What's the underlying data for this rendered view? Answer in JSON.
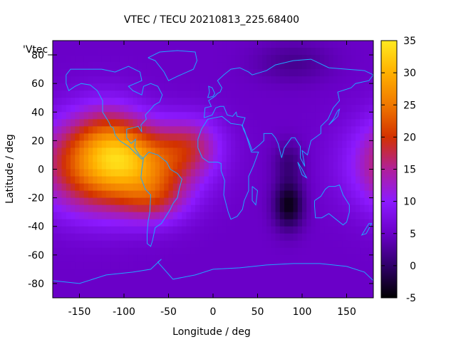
{
  "chart_data": {
    "type": "heatmap",
    "title": "VTEC / TECU 20210813_225.68400",
    "xlabel": "Longitude / deg",
    "ylabel": "Latitude / deg",
    "corner_label": "'Vtec_",
    "xlim": [
      -180,
      180
    ],
    "ylim": [
      -90,
      90
    ],
    "xticks": [
      -150,
      -100,
      -50,
      0,
      50,
      100,
      150
    ],
    "yticks": [
      -80,
      -60,
      -40,
      -20,
      0,
      20,
      40,
      60,
      80
    ],
    "colorbar": {
      "range": [
        -5,
        35
      ],
      "ticks": [
        -5,
        0,
        5,
        10,
        15,
        20,
        25,
        30,
        35
      ],
      "palette": [
        "#000000",
        "#30006a",
        "#6a00c8",
        "#8c1aff",
        "#b0209a",
        "#d33200",
        "#f07800",
        "#ffb000",
        "#ffea20"
      ]
    },
    "grid": false,
    "legend": "none",
    "features": [
      {
        "lon": -150,
        "lat": 5,
        "sx": 40,
        "sy": 22,
        "amp": 12
      },
      {
        "lon": -118,
        "lat": 18,
        "sx": 30,
        "sy": 20,
        "amp": 10
      },
      {
        "lon": -95,
        "lat": 8,
        "sx": 28,
        "sy": 18,
        "amp": 9
      },
      {
        "lon": -55,
        "lat": 2,
        "sx": 35,
        "sy": 18,
        "amp": 10
      },
      {
        "lon": -25,
        "lat": 18,
        "sx": 25,
        "sy": 14,
        "amp": 8
      },
      {
        "lon": -65,
        "lat": -22,
        "sx": 25,
        "sy": 12,
        "amp": 7
      },
      {
        "lon": -115,
        "lat": -15,
        "sx": 40,
        "sy": 18,
        "amp": 6
      },
      {
        "lon": 85,
        "lat": -25,
        "sx": 12,
        "sy": 12,
        "amp": -9
      },
      {
        "lon": 85,
        "lat": 5,
        "sx": 12,
        "sy": 10,
        "amp": -4
      },
      {
        "lon": 90,
        "lat": 75,
        "sx": 30,
        "sy": 10,
        "amp": -3
      }
    ],
    "coastlines": [
      [
        [
          -165,
          66
        ],
        [
          -160,
          70
        ],
        [
          -140,
          70
        ],
        [
          -125,
          70
        ],
        [
          -110,
          68
        ],
        [
          -95,
          72
        ],
        [
          -82,
          68
        ],
        [
          -80,
          62
        ],
        [
          -95,
          58
        ],
        [
          -90,
          55
        ],
        [
          -80,
          52
        ],
        [
          -78,
          58
        ],
        [
          -70,
          60
        ],
        [
          -62,
          58
        ],
        [
          -57,
          52
        ],
        [
          -60,
          47
        ],
        [
          -66,
          45
        ],
        [
          -70,
          42
        ],
        [
          -76,
          38
        ],
        [
          -75,
          35
        ],
        [
          -81,
          31
        ],
        [
          -80,
          26
        ],
        [
          -82,
          28
        ],
        [
          -84,
          30
        ],
        [
          -90,
          29
        ],
        [
          -97,
          28
        ],
        [
          -97,
          22
        ],
        [
          -92,
          18
        ],
        [
          -87,
          21
        ],
        [
          -88,
          15
        ],
        [
          -83,
          10
        ],
        [
          -79,
          8
        ],
        [
          -80,
          7
        ],
        [
          -85,
          10
        ],
        [
          -90,
          13
        ],
        [
          -95,
          16
        ],
        [
          -105,
          20
        ],
        [
          -110,
          24
        ],
        [
          -112,
          29
        ],
        [
          -115,
          30
        ],
        [
          -117,
          33
        ],
        [
          -124,
          40
        ],
        [
          -124,
          48
        ],
        [
          -130,
          55
        ],
        [
          -138,
          59
        ],
        [
          -148,
          60
        ],
        [
          -155,
          58
        ],
        [
          -162,
          55
        ],
        [
          -165,
          60
        ],
        [
          -165,
          66
        ]
      ],
      [
        [
          -78,
          8
        ],
        [
          -72,
          12
        ],
        [
          -62,
          10
        ],
        [
          -52,
          5
        ],
        [
          -48,
          0
        ],
        [
          -40,
          -3
        ],
        [
          -35,
          -7
        ],
        [
          -38,
          -14
        ],
        [
          -40,
          -20
        ],
        [
          -45,
          -24
        ],
        [
          -48,
          -28
        ],
        [
          -53,
          -33
        ],
        [
          -58,
          -38
        ],
        [
          -65,
          -41
        ],
        [
          -68,
          -50
        ],
        [
          -70,
          -54
        ],
        [
          -74,
          -52
        ],
        [
          -74,
          -45
        ],
        [
          -73,
          -37
        ],
        [
          -71,
          -30
        ],
        [
          -70,
          -18
        ],
        [
          -76,
          -14
        ],
        [
          -81,
          -6
        ],
        [
          -80,
          0
        ],
        [
          -78,
          8
        ]
      ],
      [
        [
          -17,
          15
        ],
        [
          -17,
          21
        ],
        [
          -13,
          28
        ],
        [
          -6,
          35
        ],
        [
          10,
          37
        ],
        [
          20,
          32
        ],
        [
          32,
          31
        ],
        [
          35,
          28
        ],
        [
          43,
          12
        ],
        [
          51,
          12
        ],
        [
          45,
          2
        ],
        [
          40,
          -5
        ],
        [
          40,
          -15
        ],
        [
          35,
          -22
        ],
        [
          33,
          -28
        ],
        [
          27,
          -33
        ],
        [
          20,
          -35
        ],
        [
          17,
          -30
        ],
        [
          12,
          -18
        ],
        [
          13,
          -8
        ],
        [
          9,
          -1
        ],
        [
          9,
          4
        ],
        [
          5,
          5
        ],
        [
          -5,
          5
        ],
        [
          -12,
          8
        ],
        [
          -17,
          15
        ]
      ],
      [
        [
          -10,
          36
        ],
        [
          -9,
          43
        ],
        [
          -2,
          44
        ],
        [
          -5,
          48
        ],
        [
          2,
          51
        ],
        [
          5,
          53
        ],
        [
          8,
          54
        ],
        [
          10,
          57
        ],
        [
          5,
          62
        ],
        [
          12,
          66
        ],
        [
          20,
          70
        ],
        [
          30,
          71
        ],
        [
          40,
          68
        ],
        [
          44,
          66
        ],
        [
          60,
          69
        ],
        [
          70,
          73
        ],
        [
          90,
          76
        ],
        [
          110,
          77
        ],
        [
          130,
          71
        ],
        [
          150,
          70
        ],
        [
          170,
          69
        ],
        [
          180,
          66
        ],
        [
          175,
          62
        ],
        [
          160,
          60
        ],
        [
          155,
          57
        ],
        [
          140,
          54
        ],
        [
          142,
          48
        ],
        [
          135,
          43
        ],
        [
          129,
          35
        ],
        [
          121,
          30
        ],
        [
          121,
          25
        ],
        [
          110,
          20
        ],
        [
          106,
          10
        ],
        [
          100,
          13
        ],
        [
          103,
          2
        ],
        [
          98,
          8
        ],
        [
          98,
          16
        ],
        [
          92,
          22
        ],
        [
          88,
          22
        ],
        [
          80,
          15
        ],
        [
          77,
          8
        ],
        [
          73,
          18
        ],
        [
          70,
          22
        ],
        [
          66,
          25
        ],
        [
          57,
          25
        ],
        [
          57,
          20
        ],
        [
          52,
          17
        ],
        [
          44,
          13
        ],
        [
          40,
          20
        ],
        [
          34,
          28
        ],
        [
          33,
          31
        ],
        [
          36,
          36
        ],
        [
          27,
          37
        ],
        [
          26,
          40
        ],
        [
          22,
          37
        ],
        [
          16,
          38
        ],
        [
          12,
          44
        ],
        [
          8,
          44
        ],
        [
          3,
          43
        ],
        [
          -1,
          38
        ],
        [
          -10,
          36
        ]
      ],
      [
        [
          114,
          -22
        ],
        [
          114,
          -26
        ],
        [
          115,
          -34
        ],
        [
          122,
          -34
        ],
        [
          130,
          -31
        ],
        [
          138,
          -35
        ],
        [
          146,
          -39
        ],
        [
          150,
          -37
        ],
        [
          153,
          -30
        ],
        [
          153,
          -25
        ],
        [
          146,
          -18
        ],
        [
          142,
          -11
        ],
        [
          137,
          -12
        ],
        [
          130,
          -12
        ],
        [
          126,
          -14
        ],
        [
          121,
          -19
        ],
        [
          114,
          -22
        ]
      ],
      [
        [
          -180,
          -78
        ],
        [
          -150,
          -80
        ],
        [
          -120,
          -74
        ],
        [
          -90,
          -72
        ],
        [
          -70,
          -70
        ],
        [
          -58,
          -63
        ],
        [
          -62,
          -65
        ],
        [
          -45,
          -77
        ],
        [
          -20,
          -74
        ],
        [
          0,
          -70
        ],
        [
          30,
          -69
        ],
        [
          60,
          -67
        ],
        [
          90,
          -66
        ],
        [
          120,
          -66
        ],
        [
          150,
          -68
        ],
        [
          170,
          -72
        ],
        [
          180,
          -78
        ]
      ],
      [
        [
          -73,
          78
        ],
        [
          -60,
          82
        ],
        [
          -40,
          83
        ],
        [
          -20,
          82
        ],
        [
          -18,
          76
        ],
        [
          -22,
          70
        ],
        [
          -40,
          65
        ],
        [
          -50,
          62
        ],
        [
          -55,
          68
        ],
        [
          -65,
          76
        ],
        [
          -73,
          78
        ]
      ],
      [
        [
          44,
          -12
        ],
        [
          50,
          -15
        ],
        [
          48,
          -25
        ],
        [
          44,
          -22
        ],
        [
          44,
          -12
        ]
      ],
      [
        [
          -6,
          50
        ],
        [
          0,
          51
        ],
        [
          2,
          53
        ],
        [
          -1,
          57
        ],
        [
          -5,
          58
        ],
        [
          -4,
          54
        ],
        [
          -6,
          50
        ]
      ],
      [
        [
          130,
          31
        ],
        [
          135,
          34
        ],
        [
          140,
          37
        ],
        [
          142,
          42
        ],
        [
          140,
          41
        ],
        [
          135,
          35
        ],
        [
          130,
          31
        ]
      ],
      [
        [
          95,
          5
        ],
        [
          100,
          0
        ],
        [
          105,
          -6
        ],
        [
          100,
          -4
        ],
        [
          95,
          5
        ]
      ],
      [
        [
          172,
          -41
        ],
        [
          175,
          -38
        ],
        [
          178,
          -38
        ],
        [
          172,
          -45
        ],
        [
          167,
          -46
        ],
        [
          172,
          -41
        ]
      ]
    ]
  }
}
